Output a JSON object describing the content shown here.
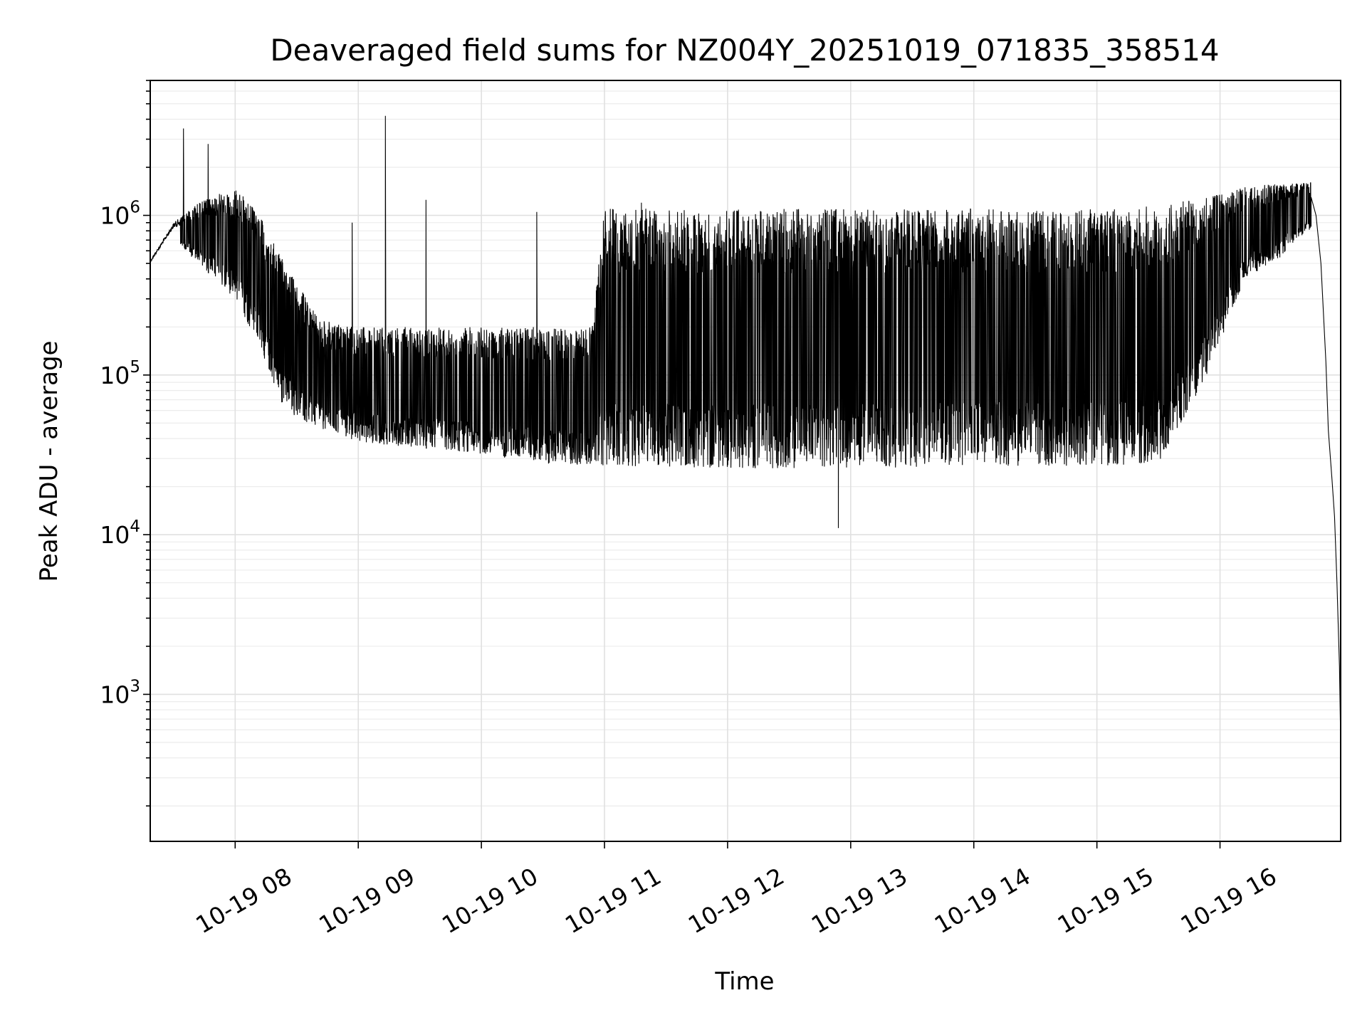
{
  "chart_data": {
    "type": "line",
    "title": "Deaveraged field sums for NZ004Y_20251019_071835_358514",
    "xlabel": "Time",
    "ylabel": "Peak ADU - average",
    "y_scale": "log",
    "ylim": [
      120,
      7000000
    ],
    "x_range_hours": [
      7.31,
      16.98
    ],
    "grid": true,
    "x_ticks": [
      {
        "value": 8,
        "label": "10-19 08"
      },
      {
        "value": 9,
        "label": "10-19 09"
      },
      {
        "value": 10,
        "label": "10-19 10"
      },
      {
        "value": 11,
        "label": "10-19 11"
      },
      {
        "value": 12,
        "label": "10-19 12"
      },
      {
        "value": 13,
        "label": "10-19 13"
      },
      {
        "value": 14,
        "label": "10-19 14"
      },
      {
        "value": 15,
        "label": "10-19 15"
      },
      {
        "value": 16,
        "label": "10-19 16"
      }
    ],
    "y_ticks": [
      {
        "value": 1000,
        "base": "10",
        "exp": "3"
      },
      {
        "value": 10000,
        "base": "10",
        "exp": "4"
      },
      {
        "value": 100000,
        "base": "10",
        "exp": "5"
      },
      {
        "value": 1000000,
        "base": "10",
        "exp": "6"
      }
    ],
    "series": [
      {
        "name": "Peak ADU - average",
        "envelope": [
          {
            "t": 7.31,
            "hi": 520000,
            "lo": 480000
          },
          {
            "t": 7.5,
            "hi": 900000,
            "lo": 700000
          },
          {
            "t": 7.7,
            "hi": 1200000,
            "lo": 500000
          },
          {
            "t": 8.0,
            "hi": 1500000,
            "lo": 300000
          },
          {
            "t": 8.2,
            "hi": 1000000,
            "lo": 150000
          },
          {
            "t": 8.4,
            "hi": 500000,
            "lo": 60000
          },
          {
            "t": 8.7,
            "hi": 220000,
            "lo": 45000
          },
          {
            "t": 9.0,
            "hi": 200000,
            "lo": 38000
          },
          {
            "t": 9.5,
            "hi": 200000,
            "lo": 35000
          },
          {
            "t": 10.0,
            "hi": 200000,
            "lo": 32000
          },
          {
            "t": 10.5,
            "hi": 200000,
            "lo": 28000
          },
          {
            "t": 10.9,
            "hi": 200000,
            "lo": 27000
          },
          {
            "t": 11.0,
            "hi": 1100000,
            "lo": 27000
          },
          {
            "t": 12.0,
            "hi": 1100000,
            "lo": 26000
          },
          {
            "t": 13.0,
            "hi": 1100000,
            "lo": 26000
          },
          {
            "t": 14.0,
            "hi": 1100000,
            "lo": 27000
          },
          {
            "t": 15.0,
            "hi": 1100000,
            "lo": 27000
          },
          {
            "t": 15.5,
            "hi": 1150000,
            "lo": 28000
          },
          {
            "t": 15.9,
            "hi": 1300000,
            "lo": 100000
          },
          {
            "t": 16.2,
            "hi": 1500000,
            "lo": 400000
          },
          {
            "t": 16.5,
            "hi": 1600000,
            "lo": 550000
          },
          {
            "t": 16.7,
            "hi": 1600000,
            "lo": 800000
          }
        ],
        "spikes": [
          {
            "t": 7.58,
            "v": 3500000
          },
          {
            "t": 7.78,
            "v": 2800000
          },
          {
            "t": 9.22,
            "v": 4200000
          },
          {
            "t": 8.95,
            "v": 900000
          },
          {
            "t": 9.55,
            "v": 1250000
          },
          {
            "t": 10.45,
            "v": 1050000
          },
          {
            "t": 11.3,
            "v": 1200000
          },
          {
            "t": 12.9,
            "v": 11000
          }
        ],
        "decline": [
          {
            "t": 16.74,
            "v": 1300000
          },
          {
            "t": 16.78,
            "v": 1000000
          },
          {
            "t": 16.82,
            "v": 500000
          },
          {
            "t": 16.86,
            "v": 120000
          },
          {
            "t": 16.88,
            "v": 45000
          },
          {
            "t": 16.91,
            "v": 22000
          },
          {
            "t": 16.93,
            "v": 13000
          },
          {
            "t": 16.95,
            "v": 5000
          },
          {
            "t": 16.97,
            "v": 1500
          },
          {
            "t": 16.98,
            "v": 500
          }
        ]
      }
    ]
  }
}
